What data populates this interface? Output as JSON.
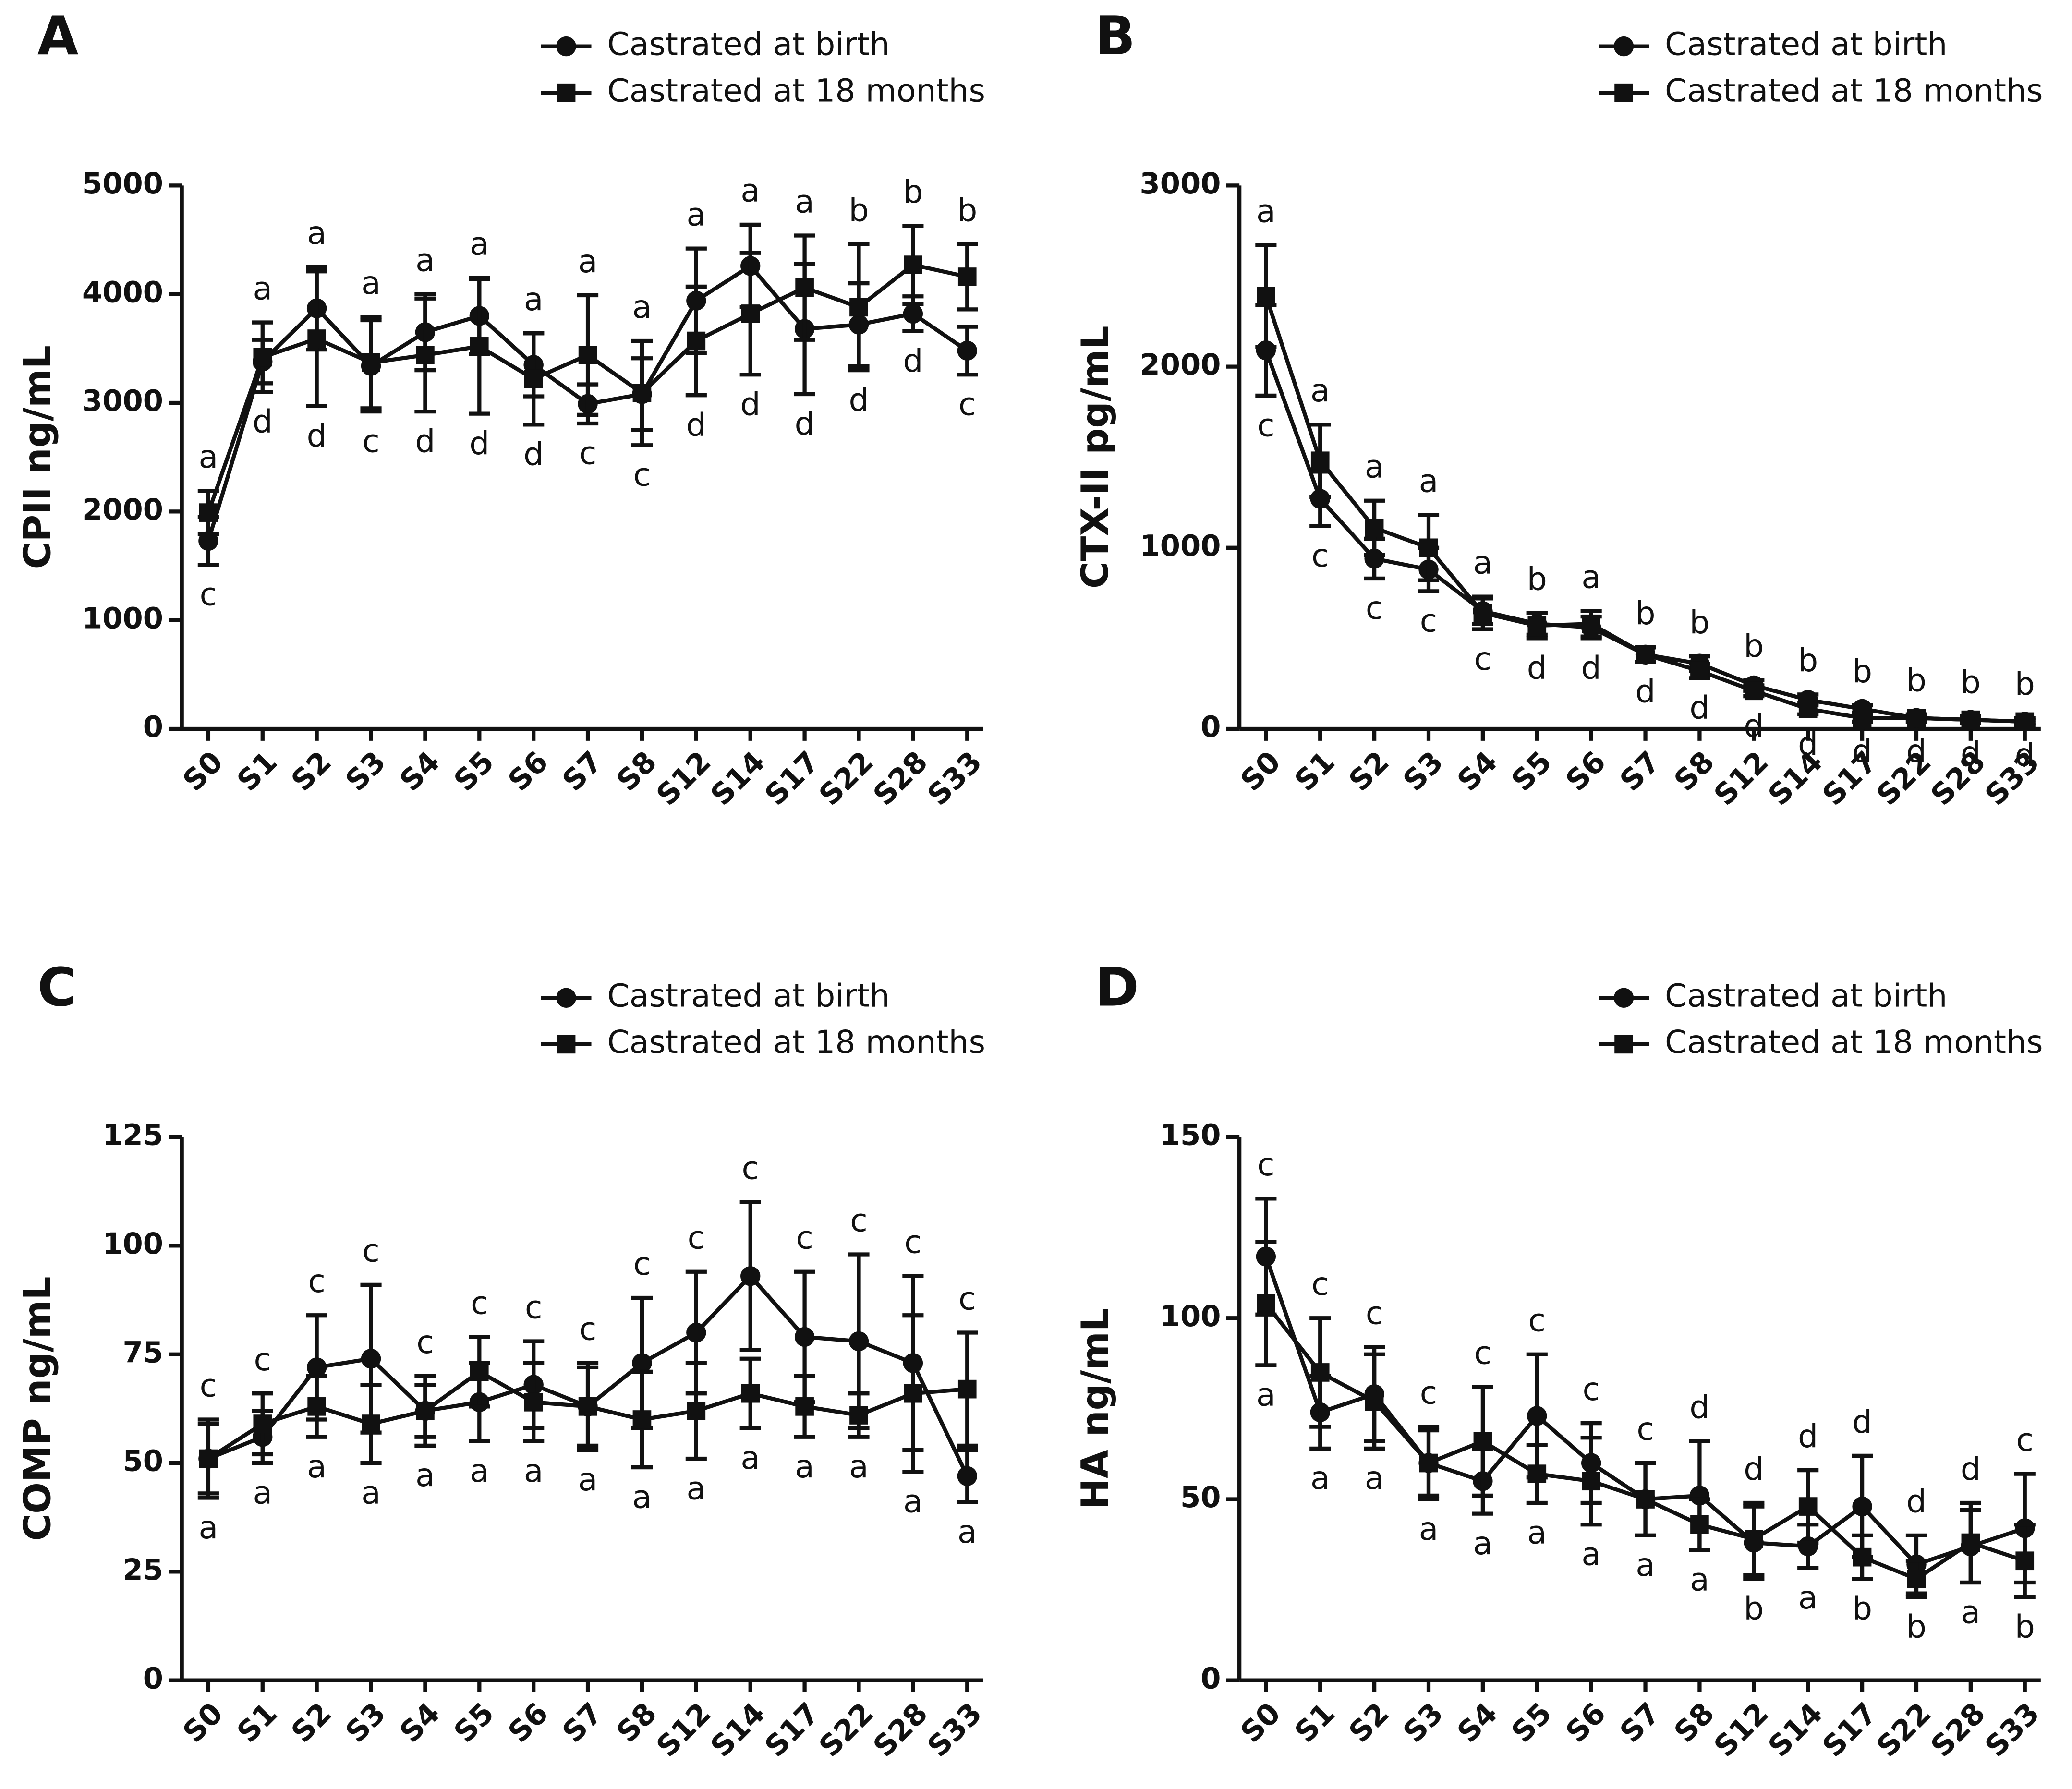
{
  "chart_data": [
    {
      "type": "line",
      "panel": "A",
      "ylabel": "CPII ng/mL",
      "categories": [
        "S0",
        "S1",
        "S2",
        "S3",
        "S4",
        "S5",
        "S6",
        "S7",
        "S8",
        "S12",
        "S14",
        "S17",
        "S22",
        "S28",
        "S33"
      ],
      "ylim": [
        0,
        5000
      ],
      "yticks": [
        0,
        1000,
        2000,
        3000,
        4000,
        5000
      ],
      "series": [
        {
          "name": "Castrated at birth",
          "marker": "circle",
          "color": "#111111",
          "values": [
            1730,
            3380,
            3870,
            3340,
            3650,
            3800,
            3350,
            2990,
            3080,
            3940,
            4260,
            3680,
            3720,
            3820,
            3480
          ],
          "errors": [
            220,
            200,
            380,
            420,
            350,
            350,
            290,
            180,
            330,
            480,
            380,
            600,
            380,
            160,
            220
          ]
        },
        {
          "name": "Castrated at 18 months",
          "marker": "square",
          "color": "#111111",
          "values": [
            1990,
            3420,
            3590,
            3370,
            3440,
            3520,
            3220,
            3440,
            3090,
            3570,
            3820,
            4060,
            3880,
            4270,
            4160
          ],
          "errors": [
            200,
            320,
            620,
            420,
            520,
            620,
            420,
            550,
            480,
            500,
            560,
            480,
            580,
            360,
            300
          ]
        }
      ],
      "letters_top": [
        "a",
        "a",
        "a",
        "a",
        "a",
        "a",
        "a",
        "a",
        "a",
        "a",
        "a",
        "a",
        "b",
        "b",
        "b"
      ],
      "letters_bottom": [
        "c",
        "d",
        "d",
        "c",
        "d",
        "d",
        "d",
        "c",
        "c",
        "d",
        "d",
        "d",
        "d",
        "d",
        "c"
      ]
    },
    {
      "type": "line",
      "panel": "B",
      "ylabel": "CTX-II pg/mL",
      "categories": [
        "S0",
        "S1",
        "S2",
        "S3",
        "S4",
        "S5",
        "S6",
        "S7",
        "S8",
        "S12",
        "S14",
        "S17",
        "S22",
        "S28",
        "S33"
      ],
      "ylim": [
        0,
        3000
      ],
      "yticks": [
        0,
        1000,
        2000,
        3000
      ],
      "series": [
        {
          "name": "Castrated at birth",
          "marker": "circle",
          "color": "#111111",
          "values": [
            2090,
            1270,
            940,
            880,
            650,
            580,
            560,
            410,
            360,
            240,
            160,
            110,
            60,
            50,
            40
          ],
          "errors": [
            250,
            150,
            110,
            120,
            70,
            60,
            60,
            40,
            40,
            30,
            30,
            20,
            20,
            20,
            10
          ]
        },
        {
          "name": "Castrated at 18 months",
          "marker": "square",
          "color": "#111111",
          "values": [
            2390,
            1480,
            1110,
            1000,
            640,
            570,
            580,
            410,
            320,
            210,
            110,
            60,
            60,
            50,
            40
          ],
          "errors": [
            280,
            200,
            150,
            180,
            90,
            70,
            70,
            40,
            40,
            30,
            30,
            20,
            20,
            20,
            20
          ]
        }
      ],
      "letters_top": [
        "a",
        "a",
        "a",
        "a",
        "a",
        "b",
        "a",
        "b",
        "b",
        "b",
        "b",
        "b",
        "b",
        "b",
        "b"
      ],
      "letters_bottom": [
        "c",
        "c",
        "c",
        "c",
        "c",
        "d",
        "d",
        "d",
        "d",
        "d",
        "d",
        "d",
        "d",
        "d",
        "d"
      ]
    },
    {
      "type": "line",
      "panel": "C",
      "ylabel": "COMP ng/mL",
      "categories": [
        "S0",
        "S1",
        "S2",
        "S3",
        "S4",
        "S5",
        "S6",
        "S7",
        "S8",
        "S12",
        "S14",
        "S17",
        "S22",
        "S28",
        "S33"
      ],
      "ylim": [
        0,
        125
      ],
      "yticks": [
        0,
        25,
        50,
        75,
        100,
        125
      ],
      "series": [
        {
          "name": "Castrated at birth",
          "marker": "circle",
          "color": "#111111",
          "values": [
            51,
            56,
            72,
            74,
            62,
            64,
            68,
            63,
            73,
            80,
            93,
            79,
            78,
            73,
            47
          ],
          "errors": [
            8,
            6,
            12,
            17,
            6,
            9,
            10,
            10,
            15,
            14,
            17,
            15,
            20,
            20,
            6
          ]
        },
        {
          "name": "Castrated at 18 months",
          "marker": "square",
          "color": "#111111",
          "values": [
            51,
            59,
            63,
            59,
            62,
            71,
            64,
            63,
            60,
            62,
            66,
            63,
            61,
            66,
            67
          ],
          "errors": [
            9,
            7,
            7,
            9,
            8,
            8,
            9,
            9,
            11,
            11,
            8,
            7,
            5,
            18,
            13
          ]
        }
      ],
      "letters_top": [
        "c",
        "c",
        "c",
        "c",
        "c",
        "c",
        "c",
        "c",
        "c",
        "c",
        "c",
        "c",
        "c",
        "c",
        "c"
      ],
      "letters_bottom": [
        "a",
        "a",
        "a",
        "a",
        "a",
        "a",
        "a",
        "a",
        "a",
        "a",
        "a",
        "a",
        "a",
        "a",
        "a"
      ]
    },
    {
      "type": "line",
      "panel": "D",
      "ylabel": "HA ng/mL",
      "categories": [
        "S0",
        "S1",
        "S2",
        "S3",
        "S4",
        "S5",
        "S6",
        "S7",
        "S8",
        "S12",
        "S14",
        "S17",
        "S22",
        "S28",
        "S33"
      ],
      "ylim": [
        0,
        150
      ],
      "yticks": [
        0,
        50,
        100,
        150
      ],
      "series": [
        {
          "name": "Castrated at birth",
          "marker": "circle",
          "color": "#111111",
          "values": [
            117,
            74,
            79,
            60,
            55,
            73,
            60,
            50,
            51,
            38,
            37,
            48,
            32,
            37,
            42
          ],
          "errors": [
            16,
            10,
            13,
            9,
            9,
            17,
            11,
            10,
            15,
            10,
            6,
            14,
            8,
            10,
            15
          ]
        },
        {
          "name": "Castrated at 18 months",
          "marker": "square",
          "color": "#111111",
          "values": [
            104,
            85,
            77,
            60,
            66,
            57,
            55,
            50,
            43,
            39,
            48,
            34,
            28,
            38,
            33
          ],
          "errors": [
            17,
            15,
            13,
            10,
            15,
            8,
            12,
            10,
            7,
            10,
            10,
            6,
            5,
            11,
            10
          ]
        }
      ],
      "letters_top": [
        "c",
        "c",
        "c",
        "c",
        "c",
        "c",
        "c",
        "c",
        "d",
        "d",
        "d",
        "d",
        "d",
        "d",
        "c"
      ],
      "letters_bottom": [
        "a",
        "a",
        "a",
        "a",
        "a",
        "a",
        "a",
        "a",
        "a",
        "b",
        "a",
        "b",
        "b",
        "a",
        "b"
      ]
    }
  ]
}
